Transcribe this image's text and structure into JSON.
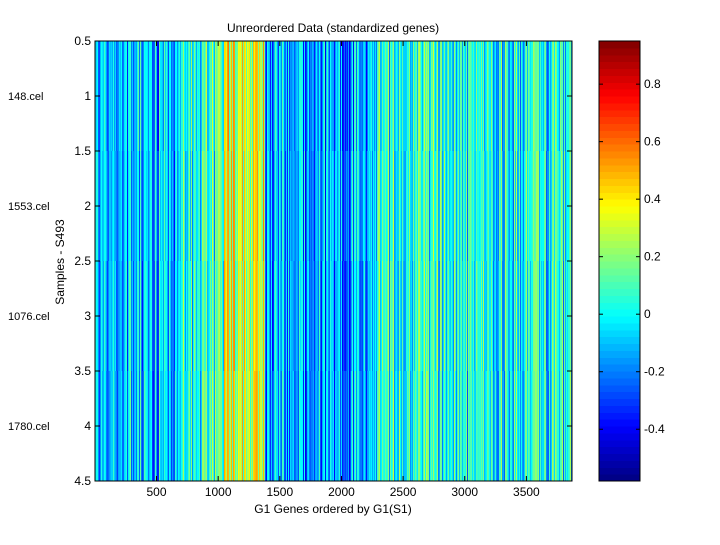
{
  "chart_data": {
    "type": "heatmap",
    "title": "Unreordered Data (standardized genes)",
    "xlabel": "G1 Genes ordered by G1(S1)",
    "ylabel": "Samples - S493",
    "xlim": [
      1,
      3870
    ],
    "ylim": [
      0.5,
      4.5
    ],
    "x_ticks": [
      500,
      1000,
      1500,
      2000,
      2500,
      3000,
      3500
    ],
    "y_ticks": [
      0.5,
      1,
      1.5,
      2,
      2.5,
      3,
      3.5,
      4,
      4.5
    ],
    "row_labels": [
      "148.cel",
      "1553.cel",
      "1076.cel",
      "1780.cel"
    ],
    "n_genes": 3870,
    "colormap": "jet",
    "clim": [
      -0.58,
      0.95
    ],
    "colorbar_ticks": [
      -0.4,
      -0.2,
      0,
      0.2,
      0.4,
      0.6,
      0.8
    ],
    "column_profile_means": [
      {
        "from": 1,
        "to": 100,
        "mean": -0.1
      },
      {
        "from": 100,
        "to": 700,
        "mean": -0.12
      },
      {
        "from": 700,
        "to": 1050,
        "mean": 0.05
      },
      {
        "from": 1050,
        "to": 1380,
        "mean": 0.32
      },
      {
        "from": 1380,
        "to": 2300,
        "mean": -0.15
      },
      {
        "from": 2300,
        "to": 2900,
        "mean": 0.05
      },
      {
        "from": 2900,
        "to": 3870,
        "mean": 0.0
      }
    ],
    "grid": false
  }
}
